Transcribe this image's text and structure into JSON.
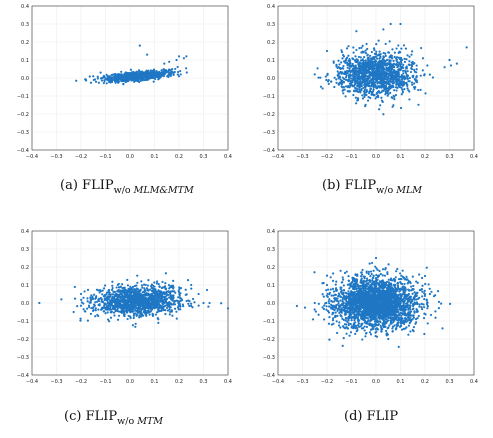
{
  "figure": {
    "panels": [
      {
        "caption": {
          "letter": "(a)",
          "main": "FLIP",
          "sub": "w/o ",
          "sub_italic": "MLM&MTM"
        },
        "chart_data": {
          "type": "scatter",
          "xlim": [
            -0.4,
            0.4
          ],
          "ylim": [
            -0.4,
            0.4
          ],
          "xticks": [
            -0.4,
            -0.3,
            -0.2,
            -0.1,
            0.0,
            0.1,
            0.2,
            0.3,
            0.4
          ],
          "yticks": [
            -0.4,
            -0.3,
            -0.2,
            -0.1,
            0.0,
            0.1,
            0.2,
            0.3,
            0.4
          ],
          "xtick_labels": [
            "−0.4",
            "−0.3",
            "−0.2",
            "−0.1",
            "0.0",
            "0.1",
            "0.2",
            "0.3",
            "0.4"
          ],
          "ytick_labels": [
            "−0.4",
            "−0.3",
            "−0.2",
            "−0.1",
            "0.0",
            "0.1",
            "0.2",
            "0.3",
            "0.4"
          ],
          "grid": true,
          "marker_color": "#1f77c4",
          "cluster": {
            "center": [
              0.03,
              0.01
            ],
            "spread": [
              0.065,
              0.012
            ],
            "tilt": 0.12,
            "count": 900
          },
          "points": [
            [
              -0.15,
              0.01
            ],
            [
              -0.12,
              0.03
            ],
            [
              0.14,
              0.08
            ],
            [
              0.16,
              0.09
            ],
            [
              0.19,
              0.1
            ],
            [
              0.2,
              0.12
            ],
            [
              0.22,
              0.11
            ],
            [
              0.23,
              0.12
            ],
            [
              0.04,
              0.18
            ],
            [
              0.07,
              0.13
            ],
            [
              0.2,
              0.01
            ],
            [
              -0.18,
              -0.01
            ]
          ]
        }
      },
      {
        "caption": {
          "letter": "(b)",
          "main": "FLIP",
          "sub": "w/o ",
          "sub_italic": "MLM"
        },
        "chart_data": {
          "type": "scatter",
          "xlim": [
            -0.4,
            0.4
          ],
          "ylim": [
            -0.4,
            0.4
          ],
          "xticks": [
            -0.4,
            -0.3,
            -0.2,
            -0.1,
            0.0,
            0.1,
            0.2,
            0.3,
            0.4
          ],
          "yticks": [
            -0.4,
            -0.3,
            -0.2,
            -0.1,
            0.0,
            0.1,
            0.2,
            0.3,
            0.4
          ],
          "xtick_labels": [
            "−0.4",
            "−0.3",
            "−0.2",
            "−0.1",
            "0.0",
            "0.1",
            "0.2",
            "0.3",
            "0.4"
          ],
          "ytick_labels": [
            "−0.4",
            "−0.3",
            "−0.2",
            "−0.1",
            "0.0",
            "0.1",
            "0.2",
            "0.3",
            "0.4"
          ],
          "grid": true,
          "marker_color": "#1f77c4",
          "cluster": {
            "center": [
              0.0,
              0.02
            ],
            "spread": [
              0.08,
              0.06
            ],
            "tilt": 0.0,
            "count": 1400
          },
          "points": [
            [
              -0.25,
              0.02
            ],
            [
              0.28,
              0.06
            ],
            [
              0.3,
              0.1
            ],
            [
              0.37,
              0.17
            ],
            [
              0.33,
              0.08
            ],
            [
              -0.2,
              0.15
            ],
            [
              0.06,
              0.3
            ],
            [
              0.1,
              0.3
            ],
            [
              0.03,
              0.27
            ],
            [
              -0.17,
              -0.05
            ],
            [
              -0.08,
              0.26
            ]
          ]
        }
      },
      {
        "caption": {
          "letter": "(c)",
          "main": "FLIP",
          "sub": "w/o ",
          "sub_italic": "MTM"
        },
        "chart_data": {
          "type": "scatter",
          "xlim": [
            -0.4,
            0.4
          ],
          "ylim": [
            -0.4,
            0.4
          ],
          "xticks": [
            -0.4,
            -0.3,
            -0.2,
            -0.1,
            0.0,
            0.1,
            0.2,
            0.3,
            0.4
          ],
          "yticks": [
            -0.4,
            -0.3,
            -0.2,
            -0.1,
            0.0,
            0.1,
            0.2,
            0.3,
            0.4
          ],
          "xtick_labels": [
            "−0.4",
            "−0.3",
            "−0.2",
            "−0.1",
            "0.0",
            "0.1",
            "0.2",
            "0.3",
            "0.4"
          ],
          "ytick_labels": [
            "−0.4",
            "−0.3",
            "−0.2",
            "−0.1",
            "0.0",
            "0.1",
            "0.2",
            "0.3",
            "0.4"
          ],
          "grid": true,
          "marker_color": "#1f77c4",
          "cluster": {
            "center": [
              0.03,
              0.01
            ],
            "spread": [
              0.09,
              0.04
            ],
            "tilt": 0.05,
            "count": 1400
          },
          "points": [
            [
              -0.37,
              0.0
            ],
            [
              0.4,
              -0.03
            ],
            [
              0.3,
              0.0
            ],
            [
              0.28,
              0.05
            ],
            [
              -0.23,
              -0.05
            ],
            [
              -0.28,
              0.02
            ],
            [
              -0.2,
              0.05
            ],
            [
              0.32,
              -0.02
            ],
            [
              0.25,
              0.08
            ]
          ]
        }
      },
      {
        "caption": {
          "letter": "(d)",
          "main": "FLIP",
          "sub": "",
          "sub_italic": ""
        },
        "chart_data": {
          "type": "scatter",
          "xlim": [
            -0.4,
            0.4
          ],
          "ylim": [
            -0.4,
            0.4
          ],
          "xticks": [
            -0.4,
            -0.3,
            -0.2,
            -0.1,
            0.0,
            0.1,
            0.2,
            0.3,
            0.4
          ],
          "yticks": [
            -0.4,
            -0.3,
            -0.2,
            -0.1,
            0.0,
            0.1,
            0.2,
            0.3,
            0.4
          ],
          "xtick_labels": [
            "−0.4",
            "−0.3",
            "−0.2",
            "−0.1",
            "0.0",
            "0.1",
            "0.2",
            "0.3",
            "0.4"
          ],
          "ytick_labels": [
            "−0.4",
            "−0.3",
            "−0.2",
            "−0.1",
            "0.0",
            "0.1",
            "0.2",
            "0.3",
            "0.4"
          ],
          "grid": true,
          "marker_color": "#1f77c4",
          "cluster": {
            "center": [
              0.0,
              0.0
            ],
            "spread": [
              0.085,
              0.07
            ],
            "tilt": 0.0,
            "count": 2600
          },
          "points": [
            [
              -0.2,
              0.1
            ],
            [
              0.2,
              0.15
            ],
            [
              0.15,
              -0.15
            ],
            [
              -0.18,
              -0.12
            ],
            [
              0.0,
              0.25
            ],
            [
              0.05,
              -0.2
            ],
            [
              -0.25,
              0.0
            ],
            [
              0.22,
              0.05
            ]
          ]
        }
      }
    ]
  }
}
